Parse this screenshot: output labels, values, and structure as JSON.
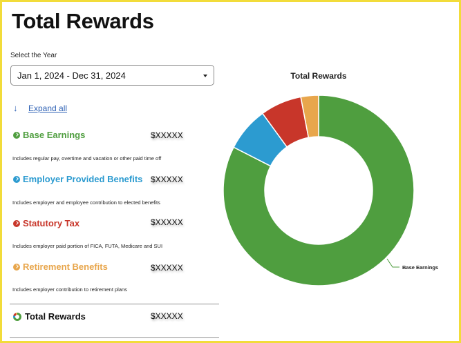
{
  "page": {
    "title": "Total Rewards"
  },
  "year_filter": {
    "label": "Select the Year",
    "selected": "Jan 1, 2024 - Dec 31, 2024"
  },
  "expand_all": {
    "label": "Expand all",
    "icon": "arrow-down-icon"
  },
  "categories": [
    {
      "name": "Base Earnings",
      "amount": "$XXXXX",
      "description": "Includes regular pay, overtime and vacation or other paid time off",
      "color": "#4f9e3f"
    },
    {
      "name": "Employer Provided Benefits",
      "amount": "$XXXXX",
      "description": "Includes employer and employee contribution to elected benefits",
      "color": "#2c9bd0"
    },
    {
      "name": "Statutory Tax",
      "amount": "$XXXXX",
      "description": "Includes employer paid portion of FICA, FUTA, Medicare and SUI",
      "color": "#c8362a"
    },
    {
      "name": "Retirement Benefits",
      "amount": "$XXXXX",
      "description": "Includes employer contribution to retirement plans",
      "color": "#e8a64c"
    }
  ],
  "total": {
    "name": "Total Rewards",
    "amount": "$XXXXX"
  },
  "chart_data": {
    "type": "pie",
    "title": "Total Rewards",
    "donut": true,
    "categories": [
      "Base Earnings",
      "Employer Provided Benefits",
      "Statutory Tax",
      "Retirement Benefits"
    ],
    "values": [
      82.5,
      7.5,
      7.0,
      3.0
    ],
    "colors": [
      "#4f9e3f",
      "#2c9bd0",
      "#c8362a",
      "#e8a64c"
    ],
    "data_labels": [
      "Base Earnings"
    ]
  }
}
